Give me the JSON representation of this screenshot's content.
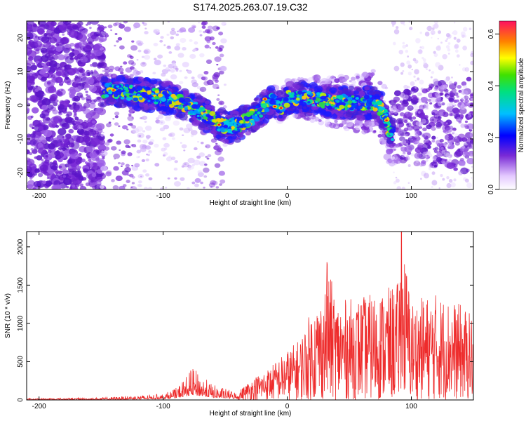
{
  "title": "S174.2025.263.07.19.C32",
  "colors": {
    "snr_line": "#ee2b2b",
    "axis": "#000000",
    "noise": "#7a2bd6"
  },
  "chart_data": [
    {
      "type": "heatmap",
      "name": "spectrogram",
      "title": "S174.2025.263.07.19.C32",
      "xlabel": "Height of straight line (km)",
      "ylabel": "Frequency (Hz)",
      "xlim": [
        -210,
        150
      ],
      "ylim": [
        -25,
        25
      ],
      "xticks": [
        -200,
        -100,
        0,
        100
      ],
      "xtick_labels": [
        "-200",
        "-100",
        "0",
        "100"
      ],
      "yticks": [
        -20,
        -10,
        0,
        10,
        20
      ],
      "ytick_labels": [
        "-20",
        "-10",
        "0",
        "10",
        "20"
      ],
      "colorbar": {
        "label": "Normalized spectral amplitude",
        "range": [
          0.0,
          0.65
        ],
        "ticks": [
          0.0,
          0.2,
          0.4,
          0.6
        ],
        "tick_labels": [
          "0.0",
          "0.2",
          "0.4",
          "0.6"
        ]
      },
      "ridge": {
        "description_points_x": [
          -145,
          -130,
          -110,
          -95,
          -80,
          -65,
          -55,
          -48,
          -40,
          -30,
          -20,
          -12,
          -5,
          0,
          10,
          20,
          40,
          60,
          70,
          75,
          80,
          82,
          85
        ],
        "description_points_y": [
          4.5,
          4,
          3,
          2,
          0,
          -3,
          -5.5,
          -6.5,
          -6,
          -4,
          -1,
          1.5,
          -0.5,
          2,
          2.5,
          1.8,
          1,
          0.5,
          1,
          -0.5,
          -4.5,
          -7,
          -9
        ]
      }
    },
    {
      "type": "line",
      "name": "snr",
      "xlabel": "Height of straight line (km)",
      "ylabel": "SNR (10 * v/v)",
      "xlim": [
        -210,
        150
      ],
      "ylim": [
        0,
        2200
      ],
      "xticks": [
        -200,
        -100,
        0,
        100
      ],
      "xtick_labels": [
        "-200",
        "-100",
        "0",
        "100"
      ],
      "yticks": [
        0,
        500,
        1000,
        1500,
        2000
      ],
      "ytick_labels": [
        "0",
        "500",
        "1000",
        "1500",
        "2000"
      ],
      "envelope": {
        "x": [
          -210,
          -150,
          -130,
          -100,
          -90,
          -80,
          -76,
          -60,
          -40,
          -30,
          -15,
          0,
          10,
          20,
          30,
          32,
          40,
          60,
          80,
          90,
          92,
          100,
          120,
          140,
          150
        ],
        "y": [
          20,
          30,
          50,
          80,
          150,
          350,
          420,
          200,
          100,
          260,
          420,
          650,
          800,
          1200,
          1400,
          1800,
          1300,
          1350,
          1450,
          1550,
          2200,
          1300,
          1400,
          1250,
          1100
        ]
      },
      "peaks": [
        {
          "x": 32,
          "y": 1800
        },
        {
          "x": 92,
          "y": 2200
        }
      ]
    }
  ]
}
